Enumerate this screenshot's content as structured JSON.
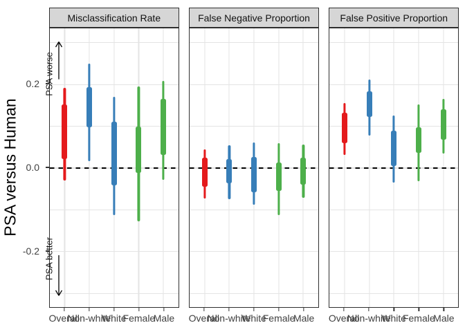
{
  "chart_data": {
    "type": "interval",
    "title": "",
    "ylabel": "PSA versus Human",
    "xlabel": "",
    "categories": [
      "Overall",
      "Non-white",
      "White",
      "Female",
      "Male"
    ],
    "category_colors": [
      "#E41A1C",
      "#377EB8",
      "#377EB8",
      "#4DAF4A",
      "#4DAF4A"
    ],
    "legend": "none",
    "grid": "on",
    "ylim": [
      -0.333,
      0.332
    ],
    "y_ticks": [
      {
        "value": 0.2,
        "label": "0.2"
      },
      {
        "value": 0.0,
        "label": "0.0"
      },
      {
        "value": -0.2,
        "label": "-0.2"
      }
    ],
    "y_gridlines": [
      0.3,
      0.2,
      0.1,
      0.0,
      -0.1,
      -0.2,
      -0.3
    ],
    "reference_line": {
      "value": 0.0,
      "style": "dashed",
      "color": "#000000"
    },
    "annotations": [
      {
        "text": "PSA worse",
        "panel": 0,
        "text_at": 0.225,
        "arrow_from": 0.212,
        "arrow_to": 0.304
      },
      {
        "text": "PSA better",
        "panel": 0,
        "text_at": -0.216,
        "arrow_from": -0.208,
        "arrow_to": -0.307
      }
    ],
    "panels": [
      {
        "title": "Misclassification Rate",
        "intervals": [
          {
            "category": "Overall",
            "outer": [
              -0.03,
              0.192
            ],
            "inner": [
              0.021,
              0.153
            ]
          },
          {
            "category": "Non-white",
            "outer": [
              0.016,
              0.25
            ],
            "inner": [
              0.097,
              0.193
            ]
          },
          {
            "category": "White",
            "outer": [
              -0.113,
              0.171
            ],
            "inner": [
              -0.042,
              0.111
            ]
          },
          {
            "category": "Female",
            "outer": [
              -0.127,
              0.196
            ],
            "inner": [
              -0.012,
              0.1
            ]
          },
          {
            "category": "Male",
            "outer": [
              -0.028,
              0.208
            ],
            "inner": [
              0.032,
              0.166
            ]
          }
        ]
      },
      {
        "title": "False Negative Proportion",
        "intervals": [
          {
            "category": "Overall",
            "outer": [
              -0.072,
              0.045
            ],
            "inner": [
              -0.044,
              0.025
            ]
          },
          {
            "category": "Non-white",
            "outer": [
              -0.074,
              0.054
            ],
            "inner": [
              -0.037,
              0.022
            ]
          },
          {
            "category": "White",
            "outer": [
              -0.088,
              0.061
            ],
            "inner": [
              -0.058,
              0.027
            ]
          },
          {
            "category": "Female",
            "outer": [
              -0.112,
              0.059
            ],
            "inner": [
              -0.054,
              0.013
            ]
          },
          {
            "category": "Male",
            "outer": [
              -0.071,
              0.056
            ],
            "inner": [
              -0.04,
              0.025
            ]
          }
        ]
      },
      {
        "title": "False Positive Proportion",
        "intervals": [
          {
            "category": "Overall",
            "outer": [
              0.032,
              0.155
            ],
            "inner": [
              0.059,
              0.133
            ]
          },
          {
            "category": "Non-white",
            "outer": [
              0.078,
              0.212
            ],
            "inner": [
              0.122,
              0.183
            ]
          },
          {
            "category": "White",
            "outer": [
              -0.034,
              0.125
            ],
            "inner": [
              0.005,
              0.09
            ]
          },
          {
            "category": "Female",
            "outer": [
              -0.032,
              0.153
            ],
            "inner": [
              0.037,
              0.097
            ]
          },
          {
            "category": "Male",
            "outer": [
              0.034,
              0.166
            ],
            "inner": [
              0.067,
              0.141
            ]
          }
        ]
      }
    ]
  }
}
